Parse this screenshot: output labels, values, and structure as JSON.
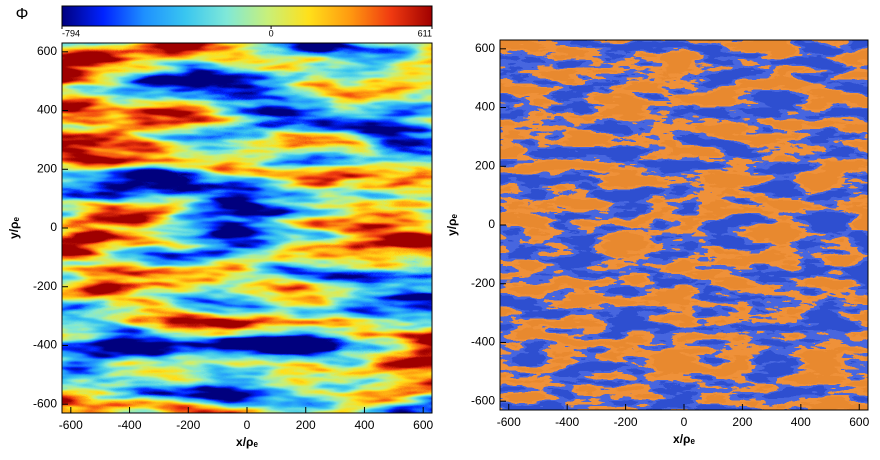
{
  "chart_data": [
    {
      "type": "heatmap",
      "xlabel": "x/ρₑ",
      "ylabel": "y/ρₑ",
      "xlim": [
        -630,
        630
      ],
      "ylim": [
        -630,
        630
      ],
      "xticks": [
        -600,
        -400,
        -200,
        0,
        200,
        400,
        600
      ],
      "yticks": [
        -600,
        -400,
        -200,
        0,
        200,
        400,
        600
      ],
      "colormap": [
        "#00007f",
        "#0022ff",
        "#1e90ff",
        "#39c6f0",
        "#7fe8d8",
        "#c8f07a",
        "#ffe01a",
        "#ff9a10",
        "#f03a10",
        "#a00000"
      ],
      "colorbar": {
        "label": "Φ",
        "lim": [
          -794,
          611
        ],
        "ticks": [
          -794,
          0,
          611
        ]
      }
    },
    {
      "type": "heatmap",
      "xlabel": "x/ρₑ",
      "ylabel": "y/ρₑ",
      "xlim": [
        -630,
        630
      ],
      "ylim": [
        -630,
        630
      ],
      "xticks": [
        -600,
        -400,
        -200,
        0,
        200,
        400,
        600
      ],
      "yticks": [
        -600,
        -400,
        -200,
        0,
        200,
        400,
        600
      ],
      "colormap": [
        "#2f4fd0",
        "#4866e0",
        "#f0913a",
        "#e88a30"
      ]
    }
  ]
}
